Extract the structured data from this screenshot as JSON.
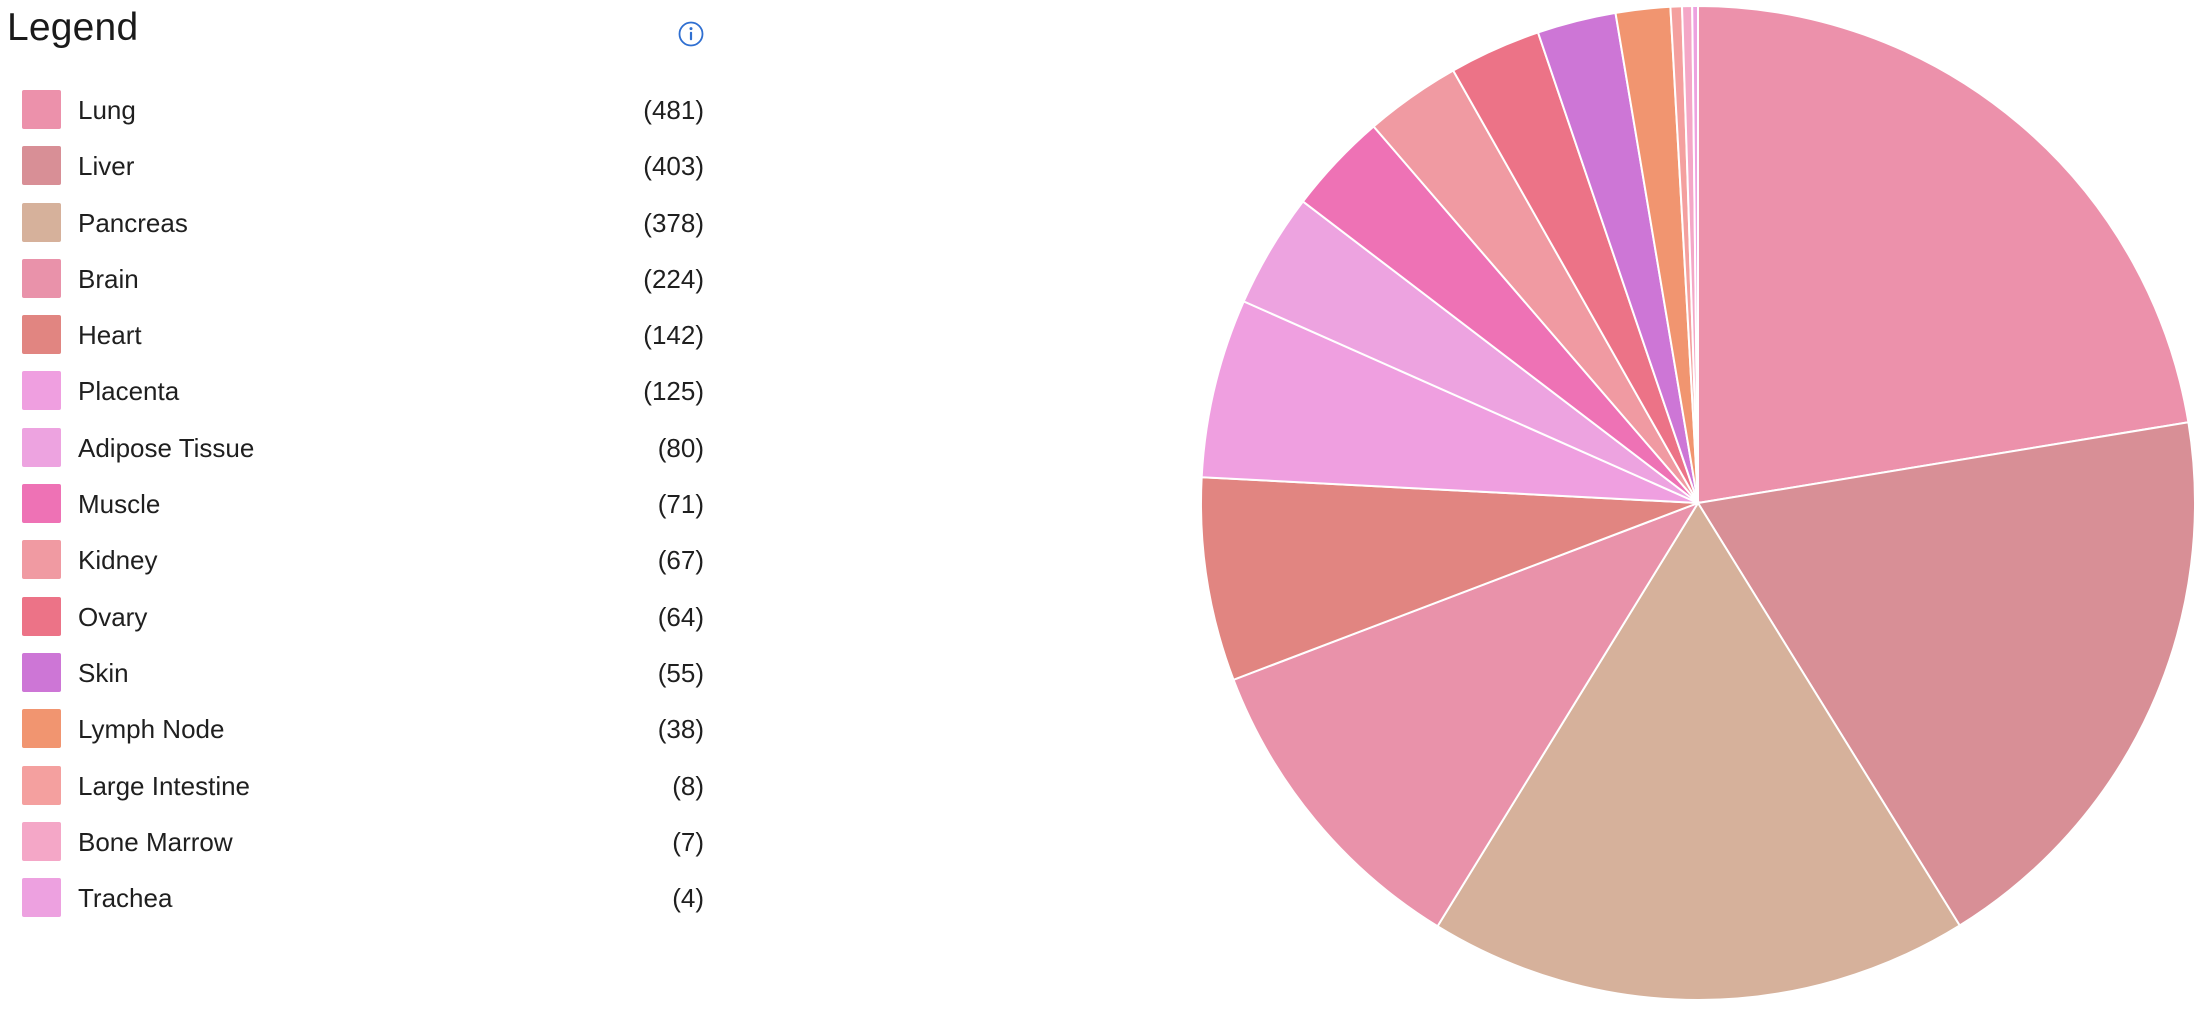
{
  "legend": {
    "title": "Legend",
    "info_icon": "info-icon"
  },
  "chart_data": {
    "type": "pie",
    "categories": [
      "Lung",
      "Liver",
      "Pancreas",
      "Brain",
      "Heart",
      "Placenta",
      "Adipose Tissue",
      "Muscle",
      "Kidney",
      "Ovary",
      "Skin",
      "Lymph Node",
      "Large Intestine",
      "Bone Marrow",
      "Trachea"
    ],
    "values": [
      481,
      403,
      378,
      224,
      142,
      125,
      80,
      71,
      67,
      64,
      55,
      38,
      8,
      7,
      4
    ],
    "labels": [
      "(481)",
      "(403)",
      "(378)",
      "(224)",
      "(142)",
      "(125)",
      "(80)",
      "(71)",
      "(67)",
      "(64)",
      "(55)",
      "(38)",
      "(8)",
      "(7)",
      "(4)"
    ],
    "colors": [
      "#ec91ab",
      "#d88f96",
      "#d6b19b",
      "#e992aa",
      "#e18581",
      "#ef9fe0",
      "#eda3e0",
      "#ee72b5",
      "#f09aa2",
      "#ec7387",
      "#cd76d6",
      "#f19570",
      "#f4a09f",
      "#f4a7c7",
      "#eda1e0"
    ],
    "legend_position": "left"
  }
}
